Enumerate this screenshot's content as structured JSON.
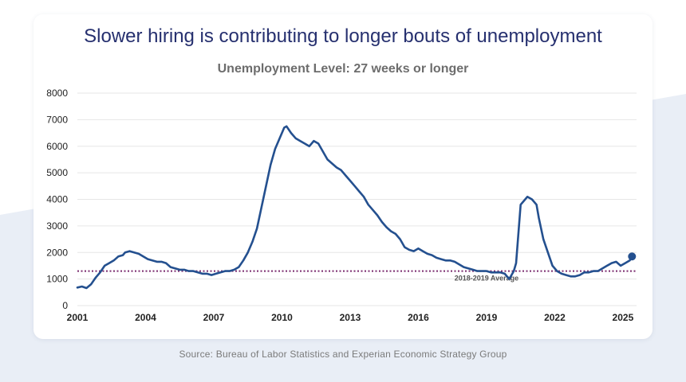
{
  "title": "Slower hiring is contributing to longer bouts of unemployment",
  "source": "Source: Bureau of Labor Statistics and Experian Economic Strategy Group",
  "colors": {
    "line": "#24508f",
    "reference": "#7a2a6e",
    "title": "#26306f",
    "background_band": "#e9eef6"
  },
  "chart_data": {
    "type": "line",
    "title": "Unemployment Level: 27 weeks or longer",
    "xlabel": "",
    "ylabel": "",
    "xlim": [
      2001.0,
      2025.6
    ],
    "ylim": [
      0,
      8000
    ],
    "yticks": [
      0,
      1000,
      2000,
      3000,
      4000,
      5000,
      6000,
      7000,
      8000
    ],
    "xticks": [
      2001,
      2004,
      2007,
      2010,
      2013,
      2016,
      2019,
      2022,
      2025
    ],
    "grid": "horizontal",
    "series": [
      {
        "x": [
          2001.0,
          2001.2,
          2001.4,
          2001.6,
          2001.8,
          2002.0,
          2002.2,
          2002.4,
          2002.6,
          2002.8,
          2003.0,
          2003.1,
          2003.3,
          2003.5,
          2003.7,
          2003.9,
          2004.1,
          2004.3,
          2004.5,
          2004.7,
          2004.9,
          2005.1,
          2005.3,
          2005.5,
          2005.7,
          2005.9,
          2006.1,
          2006.3,
          2006.5,
          2006.7,
          2006.9,
          2007.1,
          2007.3,
          2007.5,
          2007.7,
          2007.9,
          2008.1,
          2008.3,
          2008.5,
          2008.7,
          2008.9,
          2009.1,
          2009.3,
          2009.5,
          2009.7,
          2009.9,
          2010.1,
          2010.2,
          2010.4,
          2010.6,
          2010.8,
          2011.0,
          2011.2,
          2011.4,
          2011.6,
          2011.8,
          2012.0,
          2012.2,
          2012.4,
          2012.6,
          2012.8,
          2013.0,
          2013.2,
          2013.4,
          2013.6,
          2013.8,
          2014.0,
          2014.2,
          2014.4,
          2014.6,
          2014.8,
          2015.0,
          2015.2,
          2015.4,
          2015.6,
          2015.8,
          2016.0,
          2016.2,
          2016.4,
          2016.6,
          2016.8,
          2017.0,
          2017.2,
          2017.4,
          2017.6,
          2017.8,
          2018.0,
          2018.2,
          2018.4,
          2018.6,
          2018.8,
          2019.0,
          2019.2,
          2019.4,
          2019.6,
          2019.8,
          2020.0,
          2020.2,
          2020.3,
          2020.5,
          2020.7,
          2020.8,
          2021.0,
          2021.2,
          2021.3,
          2021.5,
          2021.7,
          2021.9,
          2022.1,
          2022.3,
          2022.5,
          2022.7,
          2022.9,
          2023.1,
          2023.3,
          2023.5,
          2023.7,
          2023.9,
          2024.1,
          2024.3,
          2024.5,
          2024.7,
          2024.9,
          2025.1,
          2025.3,
          2025.4
        ],
        "y": [
          680,
          720,
          660,
          800,
          1050,
          1250,
          1500,
          1600,
          1700,
          1850,
          1900,
          2000,
          2050,
          2000,
          1950,
          1850,
          1750,
          1700,
          1650,
          1650,
          1600,
          1450,
          1400,
          1350,
          1350,
          1300,
          1300,
          1250,
          1200,
          1200,
          1150,
          1200,
          1250,
          1300,
          1300,
          1350,
          1450,
          1700,
          2000,
          2400,
          2900,
          3700,
          4500,
          5300,
          5900,
          6300,
          6700,
          6750,
          6500,
          6300,
          6200,
          6100,
          6000,
          6200,
          6100,
          5800,
          5500,
          5350,
          5200,
          5100,
          4900,
          4700,
          4500,
          4300,
          4100,
          3800,
          3600,
          3400,
          3150,
          2950,
          2800,
          2700,
          2500,
          2200,
          2100,
          2050,
          2150,
          2050,
          1950,
          1900,
          1800,
          1750,
          1700,
          1700,
          1650,
          1550,
          1450,
          1400,
          1350,
          1300,
          1300,
          1300,
          1250,
          1250,
          1250,
          1200,
          1000,
          1300,
          1600,
          3800,
          4000,
          4100,
          4000,
          3800,
          3300,
          2500,
          2000,
          1500,
          1300,
          1200,
          1150,
          1100,
          1100,
          1150,
          1250,
          1250,
          1300,
          1300,
          1400,
          1500,
          1600,
          1650,
          1500,
          1600,
          1700,
          1850
        ]
      }
    ],
    "reference_line": {
      "value": 1300,
      "label": "2018-2019 Average"
    },
    "end_marker": {
      "x": 2025.4,
      "y": 1850
    }
  }
}
